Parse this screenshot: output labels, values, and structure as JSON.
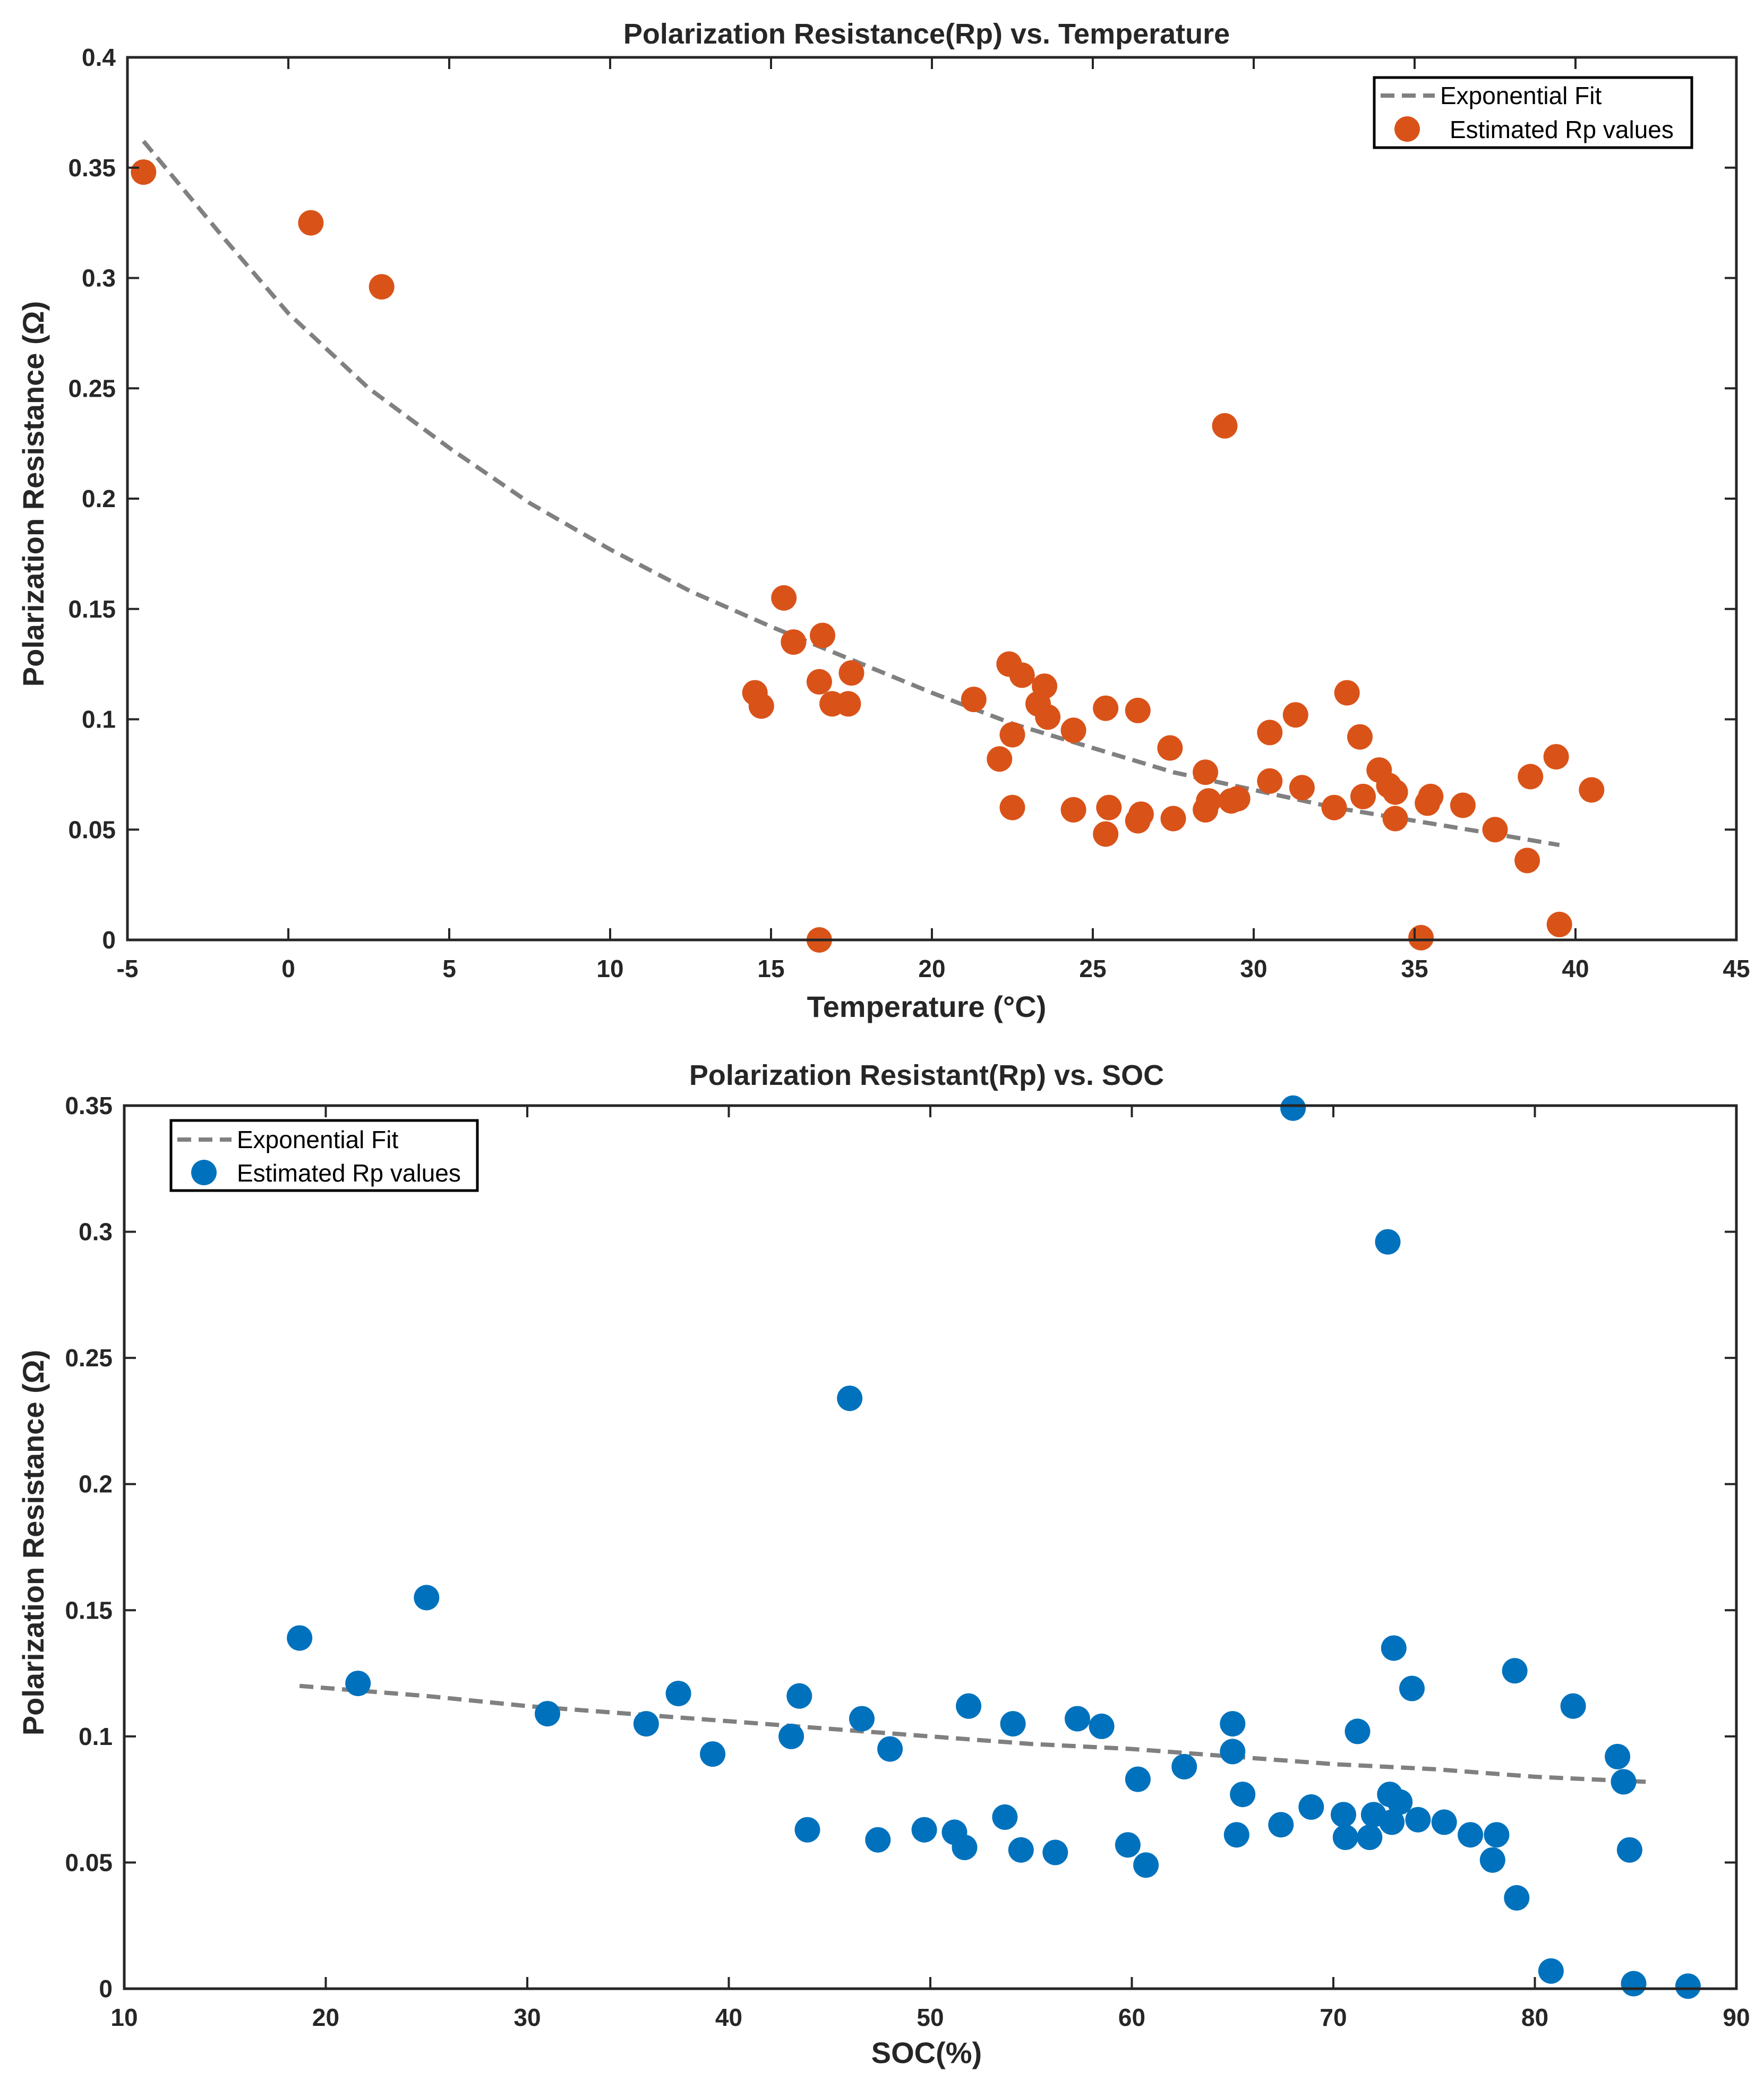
{
  "chart_data": [
    {
      "type": "scatter",
      "title": "Polarization Resistance(Rp) vs. Temperature",
      "xlabel": "Temperature (°C)",
      "ylabel": "Polarization Resistance (Ω)",
      "xlim": [
        -5,
        45
      ],
      "ylim": [
        0,
        0.4
      ],
      "xticks": [
        -5,
        0,
        5,
        10,
        15,
        20,
        25,
        30,
        35,
        40,
        45
      ],
      "yticks": [
        0,
        0.05,
        0.1,
        0.15,
        0.2,
        0.25,
        0.3,
        0.35,
        0.4
      ],
      "xtick_labels": [
        "-5",
        "0",
        "5",
        "10",
        "15",
        "20",
        "25",
        "30",
        "35",
        "40",
        "45"
      ],
      "ytick_labels": [
        "0",
        "0.05",
        "0.1",
        "0.15",
        "0.2",
        "0.25",
        "0.3",
        "0.35",
        "0.4"
      ],
      "legend_position": "top-right",
      "grid": false,
      "series": [
        {
          "name": "Exponential Fit",
          "kind": "fit-line",
          "color": "#808080",
          "x": [
            -4.5,
            -2,
            0,
            2.5,
            5,
            7.5,
            10,
            12.5,
            15,
            17.5,
            20,
            22.5,
            25,
            27.5,
            30,
            32.5,
            35,
            37.5,
            39.5
          ],
          "y": [
            0.362,
            0.318,
            0.284,
            0.25,
            0.223,
            0.198,
            0.177,
            0.158,
            0.142,
            0.127,
            0.112,
            0.098,
            0.087,
            0.076,
            0.068,
            0.06,
            0.054,
            0.048,
            0.043
          ]
        },
        {
          "name": "Estimated Rp values",
          "kind": "scatter",
          "color": "#D95319",
          "x": [
            -4.5,
            0.7,
            2.9,
            14.5,
            14.7,
            15.4,
            15.7,
            16.5,
            16.6,
            16.5,
            16.9,
            17.4,
            17.5,
            21.3,
            22.1,
            22.4,
            22.5,
            22.5,
            22.8,
            23.3,
            23.5,
            23.6,
            24.4,
            24.4,
            25.4,
            25.5,
            25.4,
            26.4,
            26.5,
            26.4,
            27.4,
            27.5,
            28.5,
            28.5,
            28.6,
            29.1,
            29.3,
            29.5,
            30.5,
            30.5,
            31.3,
            31.5,
            32.5,
            32.9,
            33.3,
            33.4,
            33.9,
            34.2,
            34.4,
            34.4,
            35.2,
            35.4,
            35.5,
            36.5,
            37.5,
            38.5,
            38.6,
            39.4,
            39.5,
            40.5
          ],
          "y": [
            0.348,
            0.325,
            0.296,
            0.112,
            0.106,
            0.155,
            0.135,
            0.117,
            0.138,
            0.0,
            0.107,
            0.107,
            0.121,
            0.109,
            0.082,
            0.125,
            0.093,
            0.06,
            0.12,
            0.107,
            0.115,
            0.101,
            0.095,
            0.059,
            0.105,
            0.06,
            0.048,
            0.104,
            0.057,
            0.054,
            0.087,
            0.055,
            0.076,
            0.059,
            0.063,
            0.233,
            0.063,
            0.064,
            0.094,
            0.072,
            0.102,
            0.069,
            0.06,
            0.112,
            0.092,
            0.065,
            0.077,
            0.07,
            0.067,
            0.055,
            0.001,
            0.062,
            0.065,
            0.061,
            0.05,
            0.036,
            0.074,
            0.083,
            0.007,
            0.068
          ]
        }
      ]
    },
    {
      "type": "scatter",
      "title": "Polarization Resistant(Rp) vs. SOC",
      "xlabel": "SOC(%)",
      "ylabel": "Polarization Resistance (Ω)",
      "xlim": [
        10,
        90
      ],
      "ylim": [
        0,
        0.35
      ],
      "xticks": [
        10,
        20,
        30,
        40,
        50,
        60,
        70,
        80,
        90
      ],
      "yticks": [
        0,
        0.05,
        0.1,
        0.15,
        0.2,
        0.25,
        0.3,
        0.35
      ],
      "xtick_labels": [
        "10",
        "20",
        "30",
        "40",
        "50",
        "60",
        "70",
        "80",
        "90"
      ],
      "ytick_labels": [
        "0",
        "0.05",
        "0.1",
        "0.15",
        "0.2",
        "0.25",
        "0.3",
        "0.35"
      ],
      "legend_position": "top-left",
      "grid": false,
      "series": [
        {
          "name": "Exponential Fit",
          "kind": "fit-line",
          "color": "#808080",
          "x": [
            18.7,
            25,
            30,
            35,
            40,
            45,
            50,
            55,
            60,
            65,
            70,
            75,
            80,
            85.5
          ],
          "y": [
            0.12,
            0.116,
            0.112,
            0.109,
            0.106,
            0.103,
            0.1,
            0.097,
            0.095,
            0.092,
            0.089,
            0.087,
            0.084,
            0.082
          ]
        },
        {
          "name": "Estimated Rp values",
          "kind": "scatter",
          "color": "#0072BD",
          "x": [
            18.7,
            21.6,
            25.0,
            31.0,
            35.9,
            37.5,
            39.2,
            43.1,
            43.5,
            43.9,
            46.0,
            46.6,
            47.4,
            48.0,
            49.7,
            51.2,
            51.7,
            51.9,
            53.7,
            54.1,
            54.5,
            56.2,
            57.3,
            58.5,
            59.8,
            60.3,
            60.7,
            62.6,
            65.0,
            65.0,
            65.2,
            65.5,
            67.4,
            68.0,
            68.9,
            70.5,
            70.6,
            71.2,
            71.8,
            72.0,
            72.7,
            72.8,
            72.9,
            73.0,
            73.3,
            73.9,
            74.2,
            75.5,
            76.8,
            77.9,
            78.1,
            79.0,
            79.1,
            80.8,
            81.9,
            84.1,
            84.4,
            84.7,
            84.9,
            87.6
          ],
          "y": [
            0.139,
            0.121,
            0.155,
            0.109,
            0.105,
            0.117,
            0.093,
            0.1,
            0.116,
            0.063,
            0.234,
            0.107,
            0.059,
            0.095,
            0.063,
            0.062,
            0.056,
            0.112,
            0.068,
            0.105,
            0.055,
            0.054,
            0.107,
            0.104,
            0.057,
            0.083,
            0.049,
            0.088,
            0.105,
            0.094,
            0.061,
            0.077,
            0.065,
            0.349,
            0.072,
            0.069,
            0.06,
            0.102,
            0.06,
            0.069,
            0.296,
            0.077,
            0.066,
            0.135,
            0.074,
            0.119,
            0.067,
            0.066,
            0.061,
            0.051,
            0.061,
            0.126,
            0.036,
            0.007,
            0.112,
            0.092,
            0.082,
            0.055,
            0.002,
            0.001
          ]
        }
      ]
    }
  ]
}
